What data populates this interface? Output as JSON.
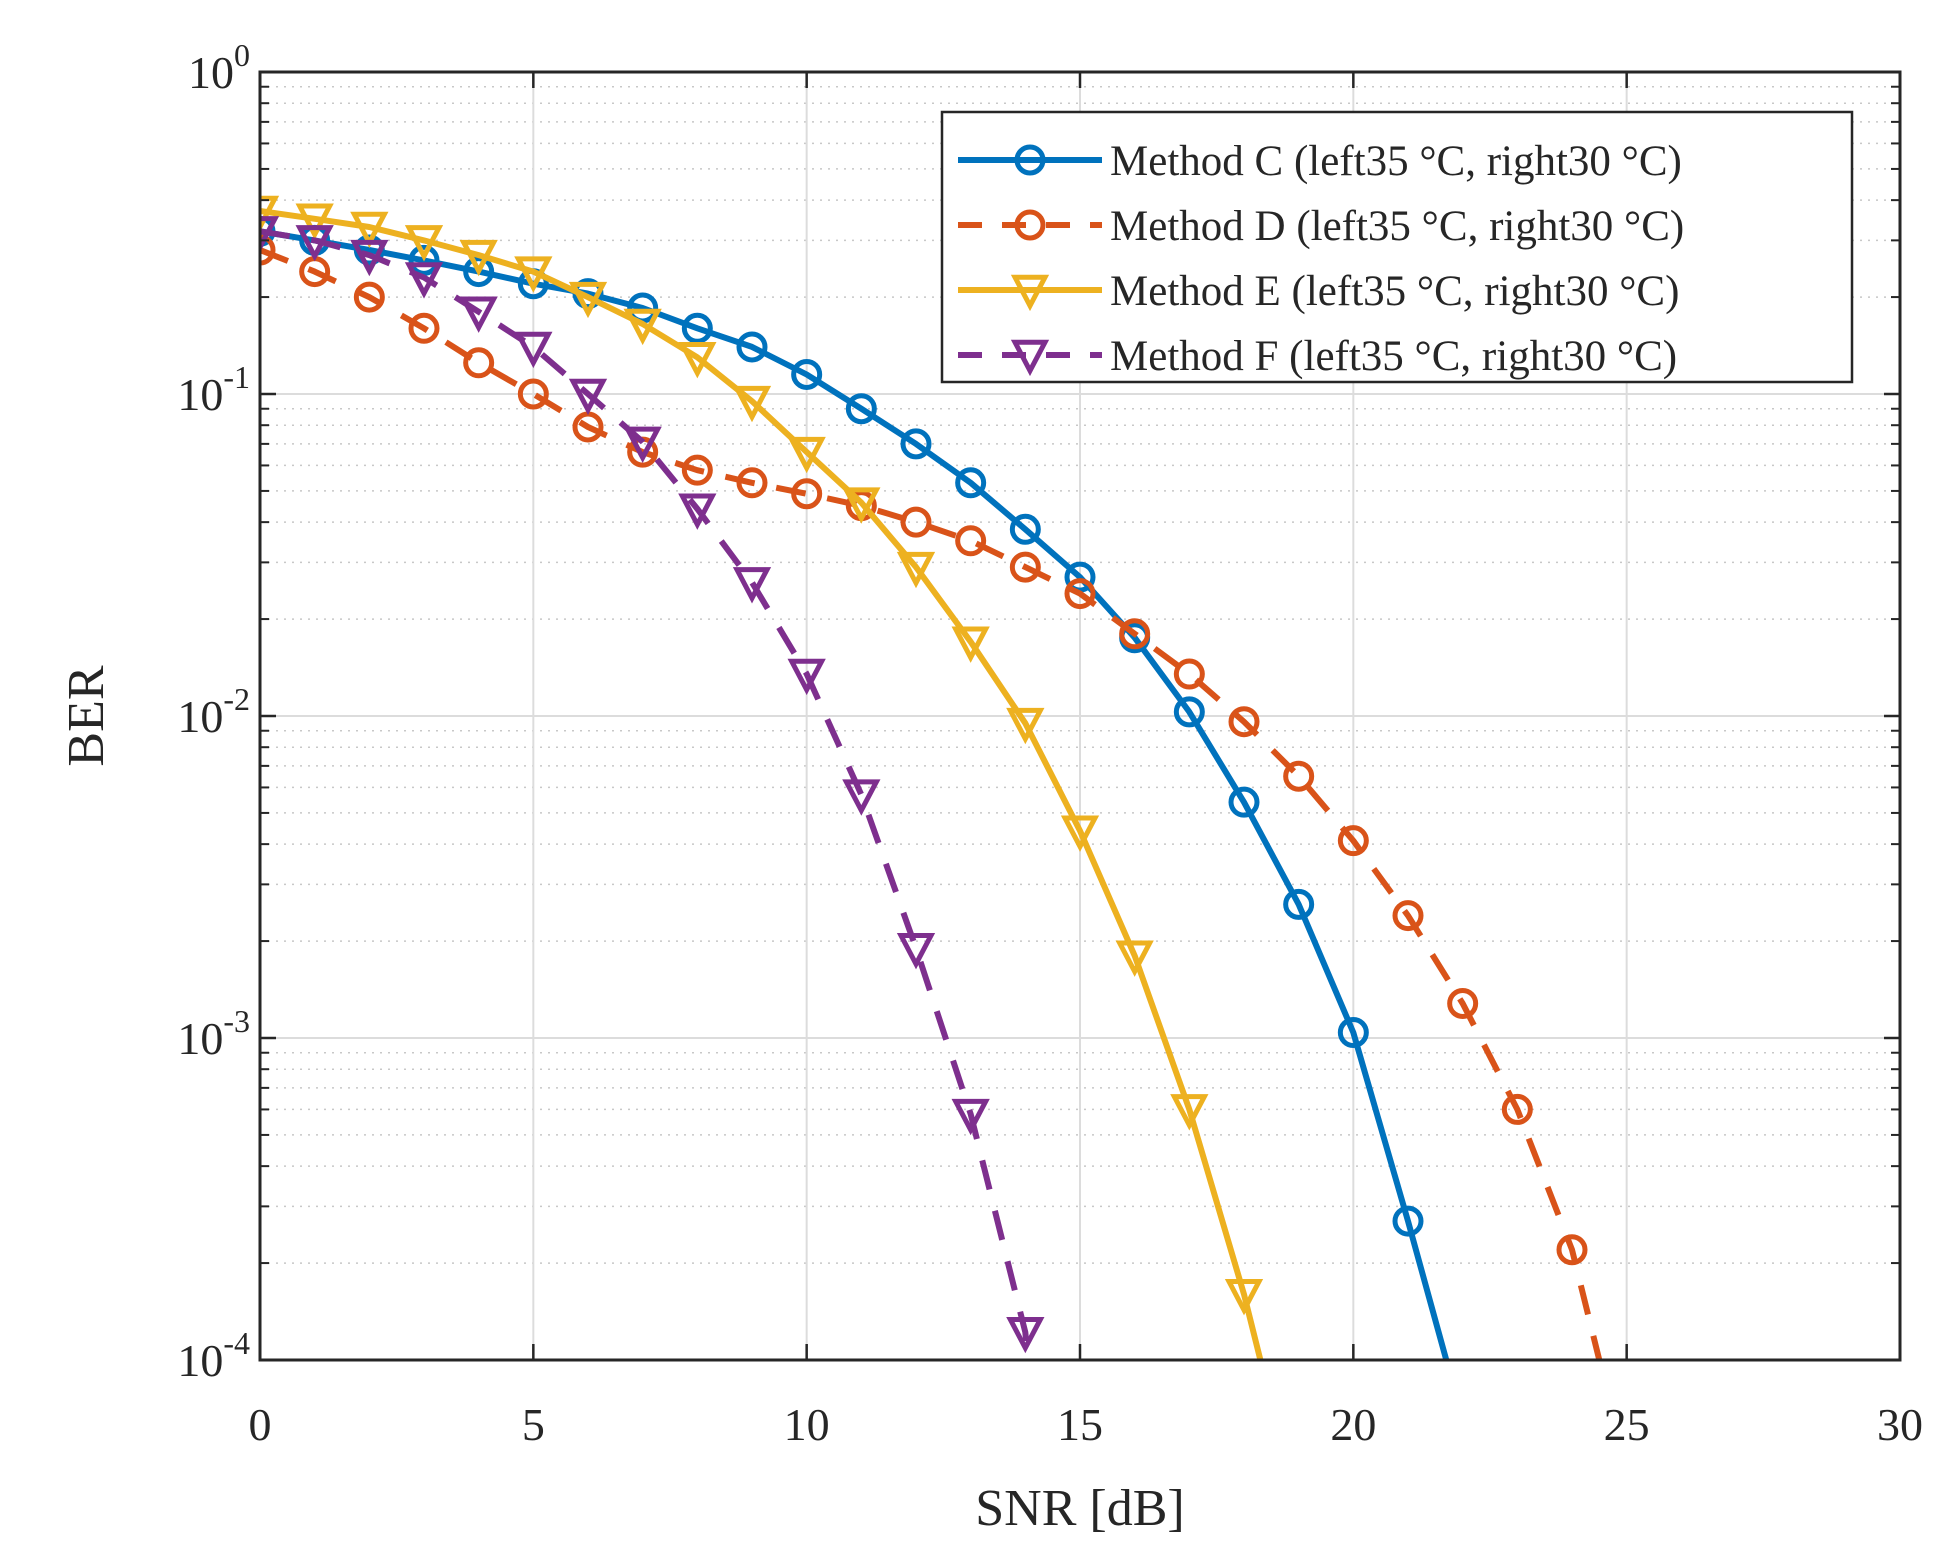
{
  "chart_data": {
    "type": "line",
    "title": "",
    "xlabel": "SNR [dB]",
    "ylabel": "BER",
    "xlim": [
      0,
      30
    ],
    "ylim": [
      0.0001,
      1
    ],
    "yscale": "log",
    "grid": true,
    "legend_position": "top-right",
    "x_ticks": [
      "0",
      "5",
      "10",
      "15",
      "20",
      "25",
      "30"
    ],
    "y_ticks": [
      {
        "base": "10",
        "exp": "0"
      },
      {
        "base": "10",
        "exp": "-1"
      },
      {
        "base": "10",
        "exp": "-2"
      },
      {
        "base": "10",
        "exp": "-3"
      },
      {
        "base": "10",
        "exp": "-4"
      }
    ],
    "series": [
      {
        "name": "Method C (left35 °C, right30 °C)",
        "color": "#0072BD",
        "line_style": "solid",
        "marker": "circle",
        "x": [
          0,
          1,
          2,
          3,
          4,
          5,
          6,
          7,
          8,
          9,
          10,
          11,
          12,
          13,
          14,
          15,
          16,
          17,
          18,
          19,
          20,
          21,
          21.7
        ],
        "y": [
          0.32,
          0.3,
          0.28,
          0.26,
          0.24,
          0.22,
          0.205,
          0.185,
          0.16,
          0.14,
          0.115,
          0.09,
          0.07,
          0.053,
          0.038,
          0.027,
          0.0175,
          0.0103,
          0.0054,
          0.0026,
          0.00104,
          0.00027,
          0.0001
        ]
      },
      {
        "name": "Method D (left35 °C, right30 °C)",
        "color": "#D95319",
        "line_style": "dashed",
        "marker": "circle",
        "x": [
          0,
          1,
          2,
          3,
          4,
          5,
          6,
          7,
          8,
          9,
          10,
          11,
          12,
          13,
          14,
          15,
          16,
          17,
          18,
          19,
          20,
          21,
          22,
          23,
          24,
          24.5
        ],
        "y": [
          0.28,
          0.24,
          0.2,
          0.16,
          0.125,
          0.1,
          0.079,
          0.066,
          0.058,
          0.053,
          0.049,
          0.045,
          0.04,
          0.035,
          0.029,
          0.024,
          0.018,
          0.0135,
          0.0096,
          0.0065,
          0.0041,
          0.0024,
          0.00128,
          0.0006,
          0.00022,
          0.0001
        ]
      },
      {
        "name": "Method E (left35 °C, right30 °C)",
        "color": "#EDB120",
        "line_style": "solid",
        "marker": "triangle-down",
        "x": [
          0,
          1,
          2,
          3,
          4,
          5,
          6,
          7,
          8,
          9,
          10,
          11,
          12,
          13,
          14,
          15,
          16,
          17,
          18,
          18.3
        ],
        "y": [
          0.37,
          0.35,
          0.33,
          0.3,
          0.27,
          0.24,
          0.2,
          0.165,
          0.13,
          0.095,
          0.066,
          0.046,
          0.029,
          0.017,
          0.0095,
          0.0044,
          0.0018,
          0.0006,
          0.00016,
          0.0001
        ]
      },
      {
        "name": "Method F (left35 °C, right30 °C)",
        "color": "#7E2F8E",
        "line_style": "dashed",
        "marker": "triangle-down",
        "x": [
          0,
          1,
          2,
          3,
          4,
          5,
          6,
          7,
          8,
          9,
          10,
          11,
          12,
          13,
          14,
          14.05
        ],
        "y": [
          0.32,
          0.3,
          0.27,
          0.23,
          0.18,
          0.14,
          0.1,
          0.071,
          0.044,
          0.026,
          0.0135,
          0.0057,
          0.0019,
          0.00058,
          0.000122,
          0.0001
        ]
      }
    ]
  }
}
